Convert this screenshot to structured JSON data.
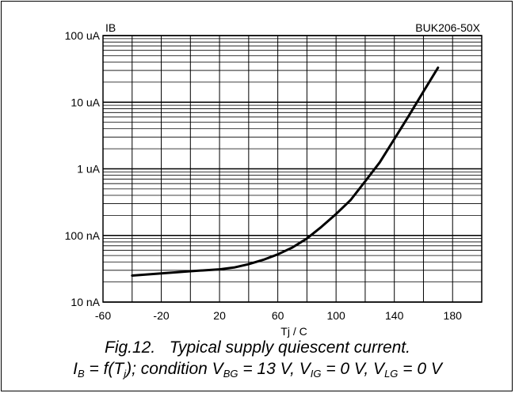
{
  "chart_data": {
    "type": "line",
    "title": "BUK206-50X",
    "ylabel": "IB",
    "xlabel": "Tj / C",
    "xlim": [
      -60,
      200
    ],
    "ylim": [
      1e-08,
      0.0001
    ],
    "yscale": "log",
    "grid": true,
    "x_ticks": [
      -60,
      -20,
      20,
      60,
      100,
      140,
      180
    ],
    "y_ticks": [
      {
        "value": 0.0001,
        "label": "100 uA"
      },
      {
        "value": 1e-05,
        "label": "10 uA"
      },
      {
        "value": 1e-06,
        "label": "1 uA"
      },
      {
        "value": 1e-07,
        "label": "100 nA"
      },
      {
        "value": 1e-08,
        "label": "10 nA"
      }
    ],
    "series": [
      {
        "name": "",
        "x": [
          -40,
          -20,
          0,
          20,
          30,
          40,
          50,
          60,
          70,
          80,
          90,
          100,
          110,
          120,
          130,
          140,
          150,
          160,
          170
        ],
        "y": [
          2.5e-08,
          2.7e-08,
          2.9e-08,
          3.1e-08,
          3.3e-08,
          3.7e-08,
          4.3e-08,
          5.2e-08,
          6.6e-08,
          9e-08,
          1.35e-07,
          2.1e-07,
          3.4e-07,
          6.5e-07,
          1.25e-06,
          2.8e-06,
          6.3e-06,
          1.45e-05,
          3.3e-05
        ]
      }
    ]
  },
  "caption": {
    "fig": "Fig.12.",
    "title": "Typical supply quiescent current.",
    "line2": {
      "I": "I",
      "sub_B": "B",
      "f_text": " = f(T",
      "sub_j": "j",
      "cond_text": "); condition V",
      "sub_BG": "BG",
      "val_BG": " = 13 V, V",
      "sub_IG": "IG",
      "val_IG": " = 0 V, V",
      "sub_LG": "LG",
      "val_LG": " = 0 V"
    }
  }
}
